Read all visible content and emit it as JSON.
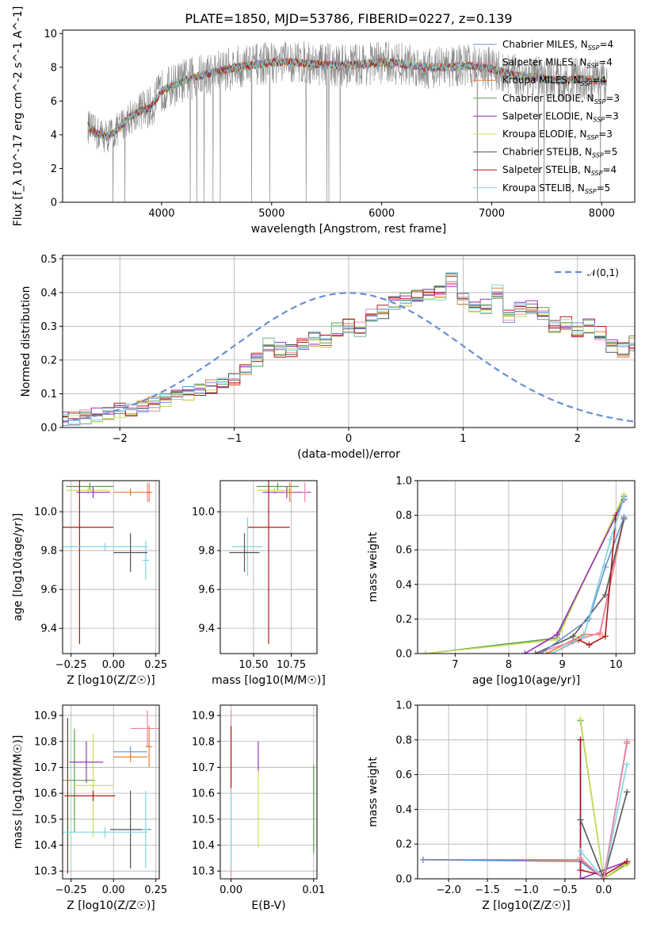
{
  "figure_title": "PLATE=1850, MJD=53786, FIBERID=0227, z=0.139",
  "colors": {
    "blue": "#6a8fd2",
    "orange": "#ed7d31",
    "green": "#5b9e52",
    "purple": "#9b30c0",
    "yellowgreen": "#c8e05a",
    "darkgray": "#555555",
    "darkred": "#b01818",
    "cyan": "#7fd4e0",
    "pink": "#ef85b5",
    "gray": "#8a8a8a"
  },
  "chart_data": [
    {
      "id": "spectrum",
      "type": "line",
      "title": "PLATE=1850, MJD=53786, FIBERID=0227, z=0.139",
      "xlabel": "wavelength [Angstrom, rest frame]",
      "ylabel": "Flux [f_λ 10^-17 erg cm^-2 s^-1 A^-1]",
      "xlim": [
        3100,
        8300
      ],
      "ylim": [
        0,
        10.2
      ],
      "xticks": [
        4000,
        5000,
        6000,
        7000,
        8000
      ],
      "yticks": [
        0,
        2,
        4,
        6,
        8,
        10
      ],
      "legend": "top-right",
      "observed_color": "#8a8a8a",
      "models": [
        {
          "name": "Chabrier MILES, N_SSP=4",
          "color": "#6a8fd2"
        },
        {
          "name": "Salpeter MILES, N_SSP=4",
          "color": "#ef85b5"
        },
        {
          "name": "Kroupa MILES, N_SSP=4",
          "color": "#ed7d31"
        },
        {
          "name": "Chabrier ELODIE, N_SSP=3",
          "color": "#5b9e52"
        },
        {
          "name": "Salpeter ELODIE, N_SSP=3",
          "color": "#9b30c0"
        },
        {
          "name": "Kroupa ELODIE, N_SSP=3",
          "color": "#c8e05a"
        },
        {
          "name": "Chabrier STELIB, N_SSP=5",
          "color": "#555555"
        },
        {
          "name": "Salpeter STELIB, N_SSP=4",
          "color": "#b01818"
        },
        {
          "name": "Kroupa STELIB, N_SSP=5",
          "color": "#7fd4e0"
        }
      ],
      "model_continuum": [
        [
          3330,
          4.5
        ],
        [
          3400,
          4.1
        ],
        [
          3500,
          3.9
        ],
        [
          3600,
          4.3
        ],
        [
          3700,
          5.0
        ],
        [
          3800,
          5.4
        ],
        [
          3900,
          5.6
        ],
        [
          4000,
          6.6
        ],
        [
          4100,
          6.9
        ],
        [
          4200,
          7.2
        ],
        [
          4400,
          7.6
        ],
        [
          4600,
          7.9
        ],
        [
          4800,
          8.1
        ],
        [
          5000,
          8.3
        ],
        [
          5200,
          8.3
        ],
        [
          5400,
          8.2
        ],
        [
          5600,
          8.1
        ],
        [
          5800,
          8.15
        ],
        [
          6000,
          8.3
        ],
        [
          6200,
          8.2
        ],
        [
          6400,
          8.0
        ],
        [
          6600,
          8.0
        ],
        [
          6800,
          8.1
        ],
        [
          7000,
          7.9
        ],
        [
          7200,
          7.5
        ],
        [
          7400,
          7.4
        ],
        [
          7600,
          7.2
        ],
        [
          7800,
          7.3
        ],
        [
          8000,
          7.2
        ],
        [
          8050,
          7.1
        ]
      ]
    },
    {
      "id": "residuals",
      "type": "histogram",
      "xlabel": "(data-model)/error",
      "ylabel": "Normed distribution",
      "xlim": [
        -2.5,
        2.5
      ],
      "ylim": [
        0,
        0.51
      ],
      "xticks": [
        -2,
        -1,
        0,
        1,
        2
      ],
      "yticks": [
        0.0,
        0.1,
        0.2,
        0.3,
        0.4,
        0.5
      ],
      "grid": true,
      "legend": "top-right",
      "reference": {
        "name": "𝒩(0,1)",
        "color": "#6a8fd2"
      },
      "bin_width": 0.1,
      "bin_start": -2.55,
      "base_heights": [
        0.025,
        0.028,
        0.033,
        0.038,
        0.04,
        0.05,
        0.055,
        0.06,
        0.07,
        0.08,
        0.09,
        0.1,
        0.11,
        0.12,
        0.13,
        0.14,
        0.17,
        0.2,
        0.25,
        0.23,
        0.23,
        0.25,
        0.26,
        0.26,
        0.29,
        0.3,
        0.29,
        0.33,
        0.34,
        0.37,
        0.38,
        0.39,
        0.39,
        0.4,
        0.44,
        0.38,
        0.35,
        0.36,
        0.4,
        0.33,
        0.35,
        0.36,
        0.34,
        0.3,
        0.31,
        0.29,
        0.3,
        0.28,
        0.24,
        0.23,
        0.25,
        0.22,
        0.2,
        0.21,
        0.19,
        0.17,
        0.16,
        0.14,
        0.13,
        0.11,
        0.1,
        0.09,
        0.08,
        0.07,
        0.06,
        0.05,
        0.045,
        0.04,
        0.035,
        0.03,
        0.028,
        0.025
      ],
      "series_colors": [
        "#6a8fd2",
        "#ef85b5",
        "#ed7d31",
        "#5b9e52",
        "#9b30c0",
        "#c8e05a",
        "#555555",
        "#b01818",
        "#7fd4e0"
      ]
    },
    {
      "id": "age-vs-Z",
      "type": "errorbar",
      "xlabel": "Z [log10(Z/Z☉)]",
      "ylabel": "age [log10(age/yr)]",
      "xlim": [
        -0.3,
        0.27
      ],
      "ylim": [
        9.27,
        10.16
      ],
      "xticks": [
        -0.25,
        0.0,
        0.25
      ],
      "yticks": [
        9.4,
        9.6,
        9.8,
        10.0
      ],
      "grid": true,
      "points": [
        {
          "x": -0.14,
          "y": 10.13,
          "xerr": 0.14,
          "yerr": 0.02,
          "color": "#5b9e52"
        },
        {
          "x": -0.15,
          "y": 10.11,
          "xerr": 0.13,
          "yerr": 0.02,
          "color": "#c8e05a"
        },
        {
          "x": -0.12,
          "y": 10.1,
          "xerr": 0.1,
          "yerr": 0.03,
          "color": "#9b30c0"
        },
        {
          "x": 0.1,
          "y": 10.1,
          "xerr": 0.1,
          "yerr": 0.02,
          "color": "#ed7d31"
        },
        {
          "x": 0.2,
          "y": 10.1,
          "xerr": 0.02,
          "yerr": 0.05,
          "color": "#ef85b5"
        },
        {
          "x": 0.21,
          "y": 10.1,
          "xerr": 0.02,
          "yerr": 0.05,
          "color": "#ed7d31"
        },
        {
          "x": -0.2,
          "y": 9.92,
          "xerr": 0.2,
          "yerr": 0.6,
          "color": "#b01818"
        },
        {
          "x": 0.19,
          "y": 9.75,
          "xerr": 0.02,
          "yerr": 0.1,
          "color": "#7fd4e0"
        },
        {
          "x": -0.05,
          "y": 9.82,
          "xerr": 0.25,
          "yerr": 0.02,
          "color": "#7fd4e0"
        },
        {
          "x": 0.1,
          "y": 9.79,
          "xerr": 0.1,
          "yerr": 0.1,
          "color": "#555555"
        }
      ]
    },
    {
      "id": "age-vs-mass",
      "type": "errorbar",
      "xlabel": "mass [log10(M/M☉)]",
      "ylabel": "",
      "xlim": [
        10.28,
        10.92
      ],
      "ylim": [
        9.27,
        10.16
      ],
      "xticks": [
        10.5,
        10.75
      ],
      "yticks": [
        9.4,
        9.6,
        9.8,
        10.0
      ],
      "grid": true,
      "points": [
        {
          "x": 10.66,
          "y": 10.13,
          "xerr": 0.14,
          "yerr": 0.02,
          "color": "#5b9e52"
        },
        {
          "x": 10.64,
          "y": 10.11,
          "xerr": 0.12,
          "yerr": 0.02,
          "color": "#c8e05a"
        },
        {
          "x": 10.72,
          "y": 10.1,
          "xerr": 0.16,
          "yerr": 0.03,
          "color": "#9b30c0"
        },
        {
          "x": 10.74,
          "y": 10.1,
          "xerr": 0.03,
          "yerr": 0.05,
          "color": "#ed7d31"
        },
        {
          "x": 10.84,
          "y": 10.1,
          "xerr": 0.02,
          "yerr": 0.05,
          "color": "#ef85b5"
        },
        {
          "x": 10.6,
          "y": 9.92,
          "xerr": 0.14,
          "yerr": 0.6,
          "color": "#b01818"
        },
        {
          "x": 10.46,
          "y": 9.82,
          "xerr": 0.1,
          "yerr": 0.15,
          "color": "#7fd4e0"
        },
        {
          "x": 10.44,
          "y": 9.79,
          "xerr": 0.1,
          "yerr": 0.1,
          "color": "#555555"
        }
      ]
    },
    {
      "id": "mass-weight-vs-age",
      "type": "line",
      "xlabel": "age [log10(age/yr)]",
      "ylabel": "mass weight",
      "xlim": [
        6.3,
        10.35
      ],
      "ylim": [
        0.0,
        1.0
      ],
      "xticks": [
        7,
        8,
        9,
        10
      ],
      "yticks": [
        0.0,
        0.2,
        0.4,
        0.6,
        0.8,
        1.0
      ],
      "grid": true,
      "series": [
        {
          "color": "#5b9e52",
          "points": [
            [
              6.45,
              0.0
            ],
            [
              8.9,
              0.09
            ],
            [
              10.15,
              0.91
            ]
          ]
        },
        {
          "color": "#c8e05a",
          "points": [
            [
              6.45,
              0.0
            ],
            [
              8.9,
              0.08
            ],
            [
              10.15,
              0.92
            ]
          ]
        },
        {
          "color": "#9b30c0",
          "points": [
            [
              8.3,
              0.0
            ],
            [
              8.9,
              0.11
            ],
            [
              10.15,
              0.89
            ]
          ]
        },
        {
          "color": "#ed7d31",
          "points": [
            [
              8.7,
              0.0
            ],
            [
              9.4,
              0.11
            ],
            [
              9.7,
              0.11
            ],
            [
              10.15,
              0.78
            ]
          ]
        },
        {
          "color": "#ef85b5",
          "points": [
            [
              8.5,
              0.0
            ],
            [
              9.2,
              0.07
            ],
            [
              9.7,
              0.12
            ],
            [
              10.15,
              0.79
            ]
          ]
        },
        {
          "color": "#555555",
          "points": [
            [
              8.5,
              0.0
            ],
            [
              9.2,
              0.1
            ],
            [
              9.8,
              0.34
            ],
            [
              10.15,
              0.78
            ]
          ]
        },
        {
          "color": "#6a8fd2",
          "points": [
            [
              8.6,
              0.0
            ],
            [
              9.5,
              0.2
            ],
            [
              9.8,
              0.5
            ],
            [
              10.15,
              0.79
            ]
          ]
        },
        {
          "color": "#b01818",
          "points": [
            [
              8.8,
              0.0
            ],
            [
              9.3,
              0.08
            ],
            [
              9.5,
              0.05
            ],
            [
              9.8,
              0.1
            ],
            [
              10.0,
              0.8
            ]
          ]
        },
        {
          "color": "#7fd4e0",
          "points": [
            [
              8.8,
              0.0
            ],
            [
              9.4,
              0.1
            ],
            [
              9.9,
              0.66
            ],
            [
              10.15,
              0.9
            ]
          ]
        }
      ]
    },
    {
      "id": "mass-vs-Z",
      "type": "errorbar",
      "xlabel": "Z [log10(Z/Z☉)]",
      "ylabel": "mass [log10(M/M☉)]",
      "xlim": [
        -0.3,
        0.27
      ],
      "ylim": [
        10.27,
        10.94
      ],
      "xticks": [
        -0.25,
        0.0,
        0.25
      ],
      "yticks": [
        10.3,
        10.4,
        10.5,
        10.6,
        10.7,
        10.8,
        10.9
      ],
      "grid": true,
      "points": [
        {
          "x": -0.27,
          "y": 10.59,
          "xerr": 0.02,
          "yerr": 0.3,
          "color": "#b01818"
        },
        {
          "x": -0.23,
          "y": 10.65,
          "xerr": 0.12,
          "yerr": 0.2,
          "color": "#5b9e52"
        },
        {
          "x": -0.12,
          "y": 10.63,
          "xerr": 0.12,
          "yerr": 0.2,
          "color": "#c8e05a"
        },
        {
          "x": -0.16,
          "y": 10.72,
          "xerr": 0.1,
          "yerr": 0.08,
          "color": "#9b30c0"
        },
        {
          "x": -0.12,
          "y": 10.59,
          "xerr": 0.13,
          "yerr": 0.02,
          "color": "#b01818"
        },
        {
          "x": 0.1,
          "y": 10.46,
          "xerr": 0.12,
          "yerr": 0.15,
          "color": "#555555"
        },
        {
          "x": -0.05,
          "y": 10.45,
          "xerr": 0.25,
          "yerr": 0.02,
          "color": "#7fd4e0"
        },
        {
          "x": 0.19,
          "y": 10.46,
          "xerr": 0.02,
          "yerr": 0.15,
          "color": "#7fd4e0"
        },
        {
          "x": 0.1,
          "y": 10.76,
          "xerr": 0.1,
          "yerr": 0.02,
          "color": "#6a8fd2"
        },
        {
          "x": 0.1,
          "y": 10.74,
          "xerr": 0.1,
          "yerr": 0.02,
          "color": "#ed7d31"
        },
        {
          "x": 0.2,
          "y": 10.85,
          "xerr": 0.1,
          "yerr": 0.07,
          "color": "#ef85b5"
        },
        {
          "x": 0.21,
          "y": 10.78,
          "xerr": 0.02,
          "yerr": 0.08,
          "color": "#ed7d31"
        }
      ]
    },
    {
      "id": "mass-vs-EBV",
      "type": "errorbar",
      "xlabel": "E(B-V)",
      "ylabel": "",
      "xlim": [
        -0.0013,
        0.0104
      ],
      "ylim": [
        10.27,
        10.94
      ],
      "xticks": [
        0.0,
        0.01
      ],
      "yticks": [
        10.3,
        10.4,
        10.5,
        10.6,
        10.7,
        10.8,
        10.9
      ],
      "grid": true,
      "points": [
        {
          "x": 0.0,
          "y": 10.6,
          "xerr": 0.0,
          "yerr": 0.32,
          "color": "#ef85b5"
        },
        {
          "x": 0.0,
          "y": 10.74,
          "xerr": 0.0,
          "yerr": 0.12,
          "color": "#b01818"
        },
        {
          "x": 0.0,
          "y": 10.46,
          "xerr": 0.0,
          "yerr": 0.15,
          "color": "#7fd4e0"
        },
        {
          "x": 0.0033,
          "y": 10.74,
          "xerr": 0.0,
          "yerr": 0.06,
          "color": "#9b30c0"
        },
        {
          "x": 0.0033,
          "y": 10.54,
          "xerr": 0.0,
          "yerr": 0.15,
          "color": "#c8e05a"
        },
        {
          "x": 0.01,
          "y": 10.54,
          "xerr": 0.0,
          "yerr": 0.17,
          "color": "#5b9e52"
        }
      ]
    },
    {
      "id": "mass-weight-vs-Z",
      "type": "line",
      "xlabel": "Z [log10(Z/Z☉)]",
      "ylabel": "mass weight",
      "xlim": [
        -2.4,
        0.4
      ],
      "ylim": [
        0.0,
        1.0
      ],
      "xticks": [
        -2.0,
        -1.5,
        -1.0,
        -0.5,
        0.0
      ],
      "yticks": [
        0.0,
        0.2,
        0.4,
        0.6,
        0.8,
        1.0
      ],
      "grid": true,
      "series": [
        {
          "color": "#ed7d31",
          "points": [
            [
              -2.33,
              0.11
            ],
            [
              -0.3,
              0.11
            ],
            [
              0.0,
              0.0
            ],
            [
              0.3,
              0.78
            ]
          ]
        },
        {
          "color": "#6a8fd2",
          "points": [
            [
              -2.33,
              0.11
            ],
            [
              -0.3,
              0.1
            ],
            [
              0.0,
              0.0
            ],
            [
              0.3,
              0.79
            ]
          ]
        },
        {
          "color": "#5b9e52",
          "points": [
            [
              -0.3,
              0.91
            ],
            [
              0.0,
              0.0
            ],
            [
              0.3,
              0.09
            ]
          ]
        },
        {
          "color": "#c8e05a",
          "points": [
            [
              -0.3,
              0.92
            ],
            [
              0.0,
              0.0
            ],
            [
              0.3,
              0.08
            ]
          ]
        },
        {
          "color": "#9b30c0",
          "points": [
            [
              -0.3,
              0.8
            ],
            [
              -0.3,
              0.0
            ],
            [
              0.3,
              0.1
            ]
          ]
        },
        {
          "color": "#b01818",
          "points": [
            [
              -0.3,
              0.8
            ],
            [
              -0.3,
              0.05
            ],
            [
              0.0,
              0.02
            ],
            [
              0.3,
              0.1
            ]
          ]
        },
        {
          "color": "#555555",
          "points": [
            [
              -0.3,
              0.34
            ],
            [
              0.0,
              0.0
            ],
            [
              0.3,
              0.5
            ]
          ]
        },
        {
          "color": "#7fd4e0",
          "points": [
            [
              -0.3,
              0.16
            ],
            [
              0.0,
              0.0
            ],
            [
              0.3,
              0.66
            ]
          ]
        },
        {
          "color": "#ef85b5",
          "points": [
            [
              -0.3,
              0.12
            ],
            [
              0.0,
              0.0
            ],
            [
              0.3,
              0.79
            ]
          ]
        }
      ]
    }
  ]
}
